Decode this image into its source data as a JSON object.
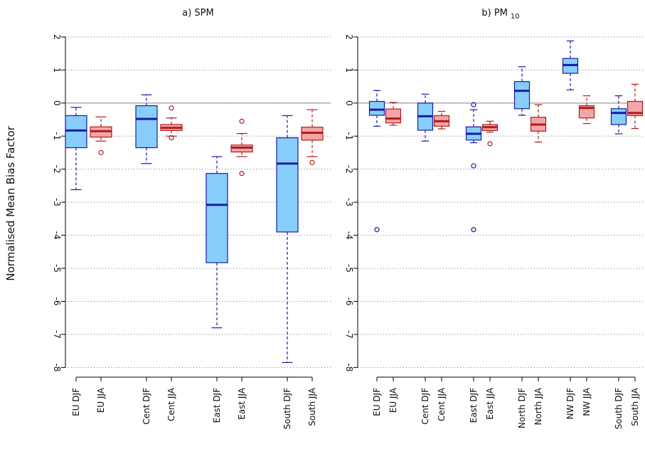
{
  "chart_data": [
    {
      "type": "box",
      "title": "a) SPM",
      "ylabel": "Normalised Mean Bias Factor",
      "ylim": [
        -8.2,
        2.1
      ],
      "yticks": [
        2,
        1,
        0,
        -1,
        -2,
        -3,
        -4,
        -5,
        -6,
        -7,
        -8
      ],
      "grid": true,
      "reference_line": 0,
      "categories": [
        "EU DJF",
        "EU JJA",
        "Cent DJF",
        "Cent JJA",
        "East DJF",
        "East JJA",
        "South DJF",
        "South JJA"
      ],
      "colors": [
        "#87cefa",
        "#f4a6a6",
        "#87cefa",
        "#f4a6a6",
        "#87cefa",
        "#f4a6a6",
        "#87cefa",
        "#f4a6a6"
      ],
      "edge_colors": [
        "#1a1aa6",
        "#b01c1c",
        "#1a1aa6",
        "#b01c1c",
        "#1a1aa6",
        "#b01c1c",
        "#1a1aa6",
        "#b01c1c"
      ],
      "boxes": [
        {
          "min": -2.62,
          "q1": -1.35,
          "median": -0.83,
          "q3": -0.38,
          "max": -0.13,
          "outliers": []
        },
        {
          "min": -1.15,
          "q1": -1.03,
          "median": -0.85,
          "q3": -0.72,
          "max": -0.42,
          "outliers": [
            -1.5
          ]
        },
        {
          "min": -1.83,
          "q1": -1.35,
          "median": -0.48,
          "q3": -0.08,
          "max": 0.25,
          "outliers": []
        },
        {
          "min": -1.0,
          "q1": -0.83,
          "median": -0.75,
          "q3": -0.65,
          "max": -0.45,
          "outliers": [
            -0.15,
            -1.05
          ]
        },
        {
          "min": -6.8,
          "q1": -4.83,
          "median": -3.08,
          "q3": -2.13,
          "max": -1.62,
          "outliers": []
        },
        {
          "min": -1.62,
          "q1": -1.48,
          "median": -1.35,
          "q3": -1.27,
          "max": -0.92,
          "outliers": [
            -0.55,
            -2.13
          ]
        },
        {
          "min": -7.85,
          "q1": -3.9,
          "median": -1.83,
          "q3": -1.05,
          "max": -0.38,
          "outliers": []
        },
        {
          "min": -1.62,
          "q1": -1.12,
          "median": -0.9,
          "q3": -0.73,
          "max": -0.2,
          "outliers": [
            -1.8
          ]
        }
      ]
    },
    {
      "type": "box",
      "title": "b) PM",
      "title_subscript": "10",
      "ylim": [
        -8.2,
        2.1
      ],
      "yticks": [
        2,
        1,
        0,
        -1,
        -2,
        -3,
        -4,
        -5,
        -6,
        -7,
        -8
      ],
      "grid": true,
      "reference_line": 0,
      "categories": [
        "EU DJF",
        "EU JJA",
        "Cent DJF",
        "Cent JJA",
        "East DJF",
        "East JJA",
        "North DJF",
        "North JJA",
        "NW DJF",
        "NW JJA",
        "South DJF",
        "South JJA"
      ],
      "colors": [
        "#87cefa",
        "#f4a6a6",
        "#87cefa",
        "#f4a6a6",
        "#87cefa",
        "#f4a6a6",
        "#87cefa",
        "#f4a6a6",
        "#87cefa",
        "#f4a6a6",
        "#87cefa",
        "#f4a6a6"
      ],
      "edge_colors": [
        "#1a1aa6",
        "#b01c1c",
        "#1a1aa6",
        "#b01c1c",
        "#1a1aa6",
        "#b01c1c",
        "#1a1aa6",
        "#b01c1c",
        "#1a1aa6",
        "#b01c1c",
        "#1a1aa6",
        "#b01c1c"
      ],
      "boxes": [
        {
          "min": -0.7,
          "q1": -0.37,
          "median": -0.2,
          "q3": 0.05,
          "max": 0.38,
          "outliers": [
            -3.83
          ]
        },
        {
          "min": -0.67,
          "q1": -0.6,
          "median": -0.47,
          "q3": -0.18,
          "max": 0.02,
          "outliers": []
        },
        {
          "min": -1.15,
          "q1": -0.82,
          "median": -0.4,
          "q3": 0,
          "max": 0.27,
          "outliers": []
        },
        {
          "min": -0.78,
          "q1": -0.7,
          "median": -0.55,
          "q3": -0.38,
          "max": -0.25,
          "outliers": []
        },
        {
          "min": -1.2,
          "q1": -1.12,
          "median": -0.93,
          "q3": -0.72,
          "max": -0.2,
          "outliers": [
            -0.05,
            -1.9,
            -3.83
          ]
        },
        {
          "min": -0.88,
          "q1": -0.83,
          "median": -0.73,
          "q3": -0.65,
          "max": -0.55,
          "outliers": [
            -1.23
          ]
        },
        {
          "min": -0.37,
          "q1": -0.17,
          "median": 0.37,
          "q3": 0.65,
          "max": 1.1,
          "outliers": []
        },
        {
          "min": -1.18,
          "q1": -0.85,
          "median": -0.65,
          "q3": -0.43,
          "max": -0.05,
          "outliers": []
        },
        {
          "min": 0.4,
          "q1": 0.9,
          "median": 1.15,
          "q3": 1.35,
          "max": 1.88,
          "outliers": []
        },
        {
          "min": -0.62,
          "q1": -0.45,
          "median": -0.15,
          "q3": -0.08,
          "max": 0.22,
          "outliers": []
        },
        {
          "min": -0.93,
          "q1": -0.65,
          "median": -0.3,
          "q3": -0.17,
          "max": 0.22,
          "outliers": []
        },
        {
          "min": -0.77,
          "q1": -0.38,
          "median": -0.3,
          "q3": 0.05,
          "max": 0.57,
          "outliers": []
        }
      ]
    }
  ]
}
